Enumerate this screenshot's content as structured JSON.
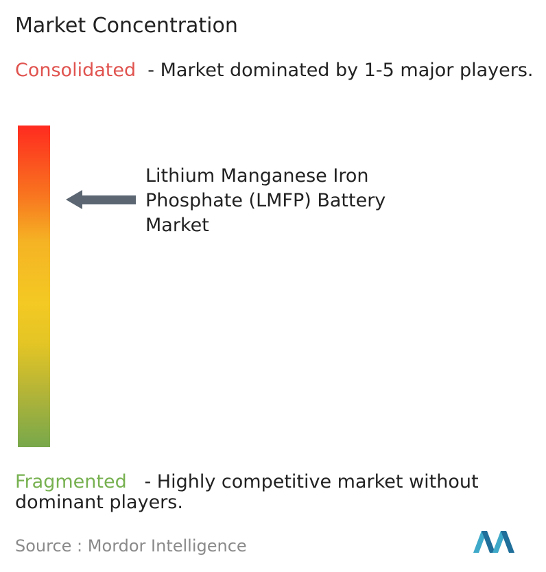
{
  "header": {
    "title": "Market Concentration"
  },
  "consolidated": {
    "label": "Consolidated",
    "description": "- Market dominated by 1-5 major players."
  },
  "market": {
    "label": "Lithium Manganese Iron Phosphate (LMFP) Battery Market"
  },
  "fragmented": {
    "label": "Fragmented",
    "description": "- Highly competitive market without dominant players."
  },
  "source": {
    "label": "Source :",
    "name": "Mordor Intelligence"
  }
}
